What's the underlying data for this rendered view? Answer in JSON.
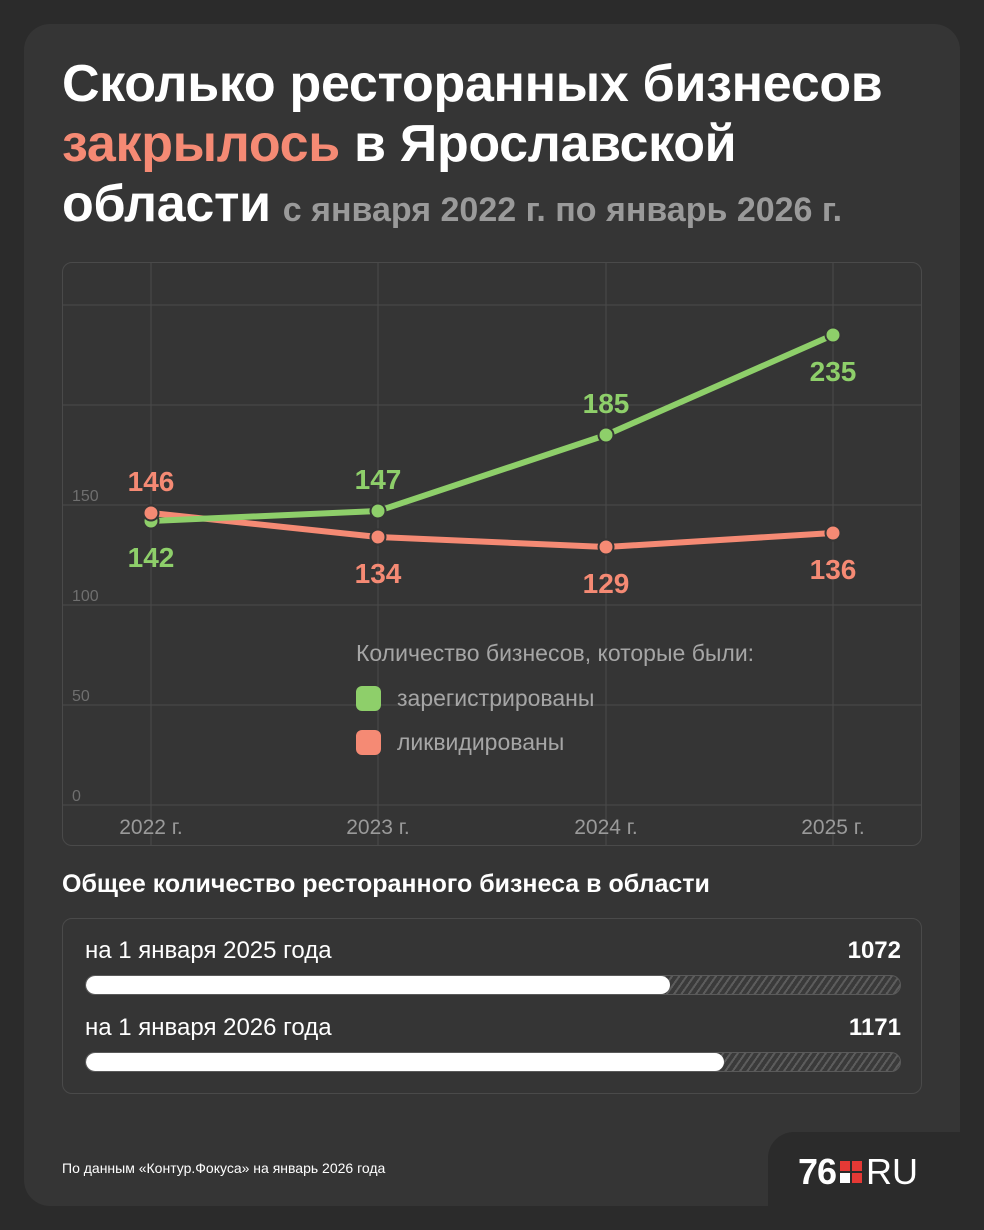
{
  "title": {
    "line1": "Сколько ресторанных бизнесов",
    "highlight": "закрылось",
    "line2_rest": " в Ярославской",
    "line3": "области",
    "subtitle": "с января 2022 г. по январь 2026 г."
  },
  "colors": {
    "background": "#2b2b2b",
    "card": "#353535",
    "accent_red": "#f58a74",
    "registered_green": "#8ecf6a",
    "liquidated_salmon": "#f58a74",
    "muted_text": "#9a9a9a"
  },
  "chart_data": {
    "type": "line",
    "categories": [
      "2022 г.",
      "2023 г.",
      "2024 г.",
      "2025 г."
    ],
    "ylim": [
      0,
      300
    ],
    "yticks": [
      0,
      50,
      100,
      150
    ],
    "grid": true,
    "legend_caption": "Количество бизнесов, которые были:",
    "legend_position": "center-right",
    "series": [
      {
        "name": "зарегистрированы",
        "color": "#8ecf6a",
        "values": [
          142,
          147,
          185,
          235
        ],
        "label_position": [
          "below",
          "above",
          "above",
          "below"
        ]
      },
      {
        "name": "ликвидированы",
        "color": "#f58a74",
        "values": [
          146,
          134,
          129,
          136
        ],
        "label_position": [
          "above",
          "below",
          "below",
          "below"
        ]
      }
    ]
  },
  "totals": {
    "heading": "Общее количество ресторанного бизнеса в области",
    "rows": [
      {
        "label": "на 1 января 2025 года",
        "value": "1072",
        "fill": 0.718
      },
      {
        "label": "на 1 января 2026 года",
        "value": "1171",
        "fill": 0.784
      }
    ]
  },
  "source": "По данным «Контур.Фокуса» на январь 2026 года",
  "logo": {
    "number": "76",
    "suffix": "RU"
  }
}
